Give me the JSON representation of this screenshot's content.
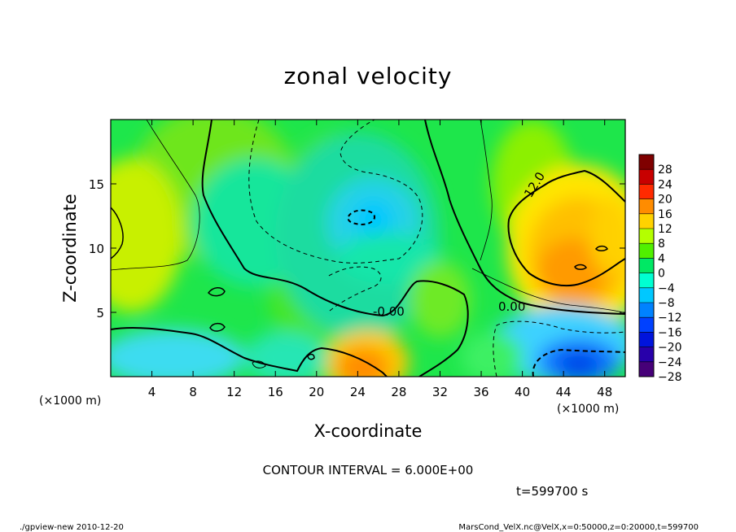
{
  "chart_data": {
    "type": "heatmap",
    "title": "zonal velocity",
    "xlabel": "X-coordinate",
    "ylabel": "Z-coordinate",
    "x_unit": "(×1000 m)",
    "y_unit": "(×1000 m)",
    "xlim": [
      0,
      50
    ],
    "ylim": [
      0,
      20
    ],
    "x_ticks": [
      "4",
      "8",
      "12",
      "16",
      "20",
      "24",
      "28",
      "32",
      "36",
      "40",
      "44",
      "48"
    ],
    "y_ticks": [
      "5",
      "10",
      "15"
    ],
    "colorbar_levels": [
      "28",
      "24",
      "20",
      "16",
      "12",
      "8",
      "4",
      "0",
      "−4",
      "−8",
      "−12",
      "−16",
      "−20",
      "−24",
      "−28"
    ],
    "colorbar_range": [
      -30,
      30
    ],
    "contour_labels": [
      "12.0",
      "0.00",
      "-0.00"
    ],
    "contour_interval_text": "CONTOUR INTERVAL = 6.000E+00",
    "time_text": "t=599700 s",
    "features": [
      {
        "name": "upper-right maximum",
        "x": 45,
        "z": 8.5,
        "value": 16
      },
      {
        "name": "bottom-center maximum",
        "x": 25,
        "z": 1,
        "value": 18
      },
      {
        "name": "center minimum",
        "x": 25.5,
        "z": 12,
        "value": -10
      },
      {
        "name": "bottom-right minimum",
        "x": 45,
        "z": 1,
        "value": -22
      },
      {
        "name": "bottom-left minimum",
        "x": 4,
        "z": 1.5,
        "value": -9
      },
      {
        "name": "left-edge maximum",
        "x": 0.5,
        "z": 11.5,
        "value": 9
      }
    ]
  },
  "footer": {
    "left": "./gpview-new   2010-12-20",
    "right": "MarsCond_VelX.nc@VelX,x=0:50000,z=0:20000,t=599700"
  },
  "colors": {
    "colorbar": [
      "#7f0000",
      "#c80000",
      "#ff2a00",
      "#ff8c00",
      "#ffd200",
      "#b4ff00",
      "#50f000",
      "#00e864",
      "#00ffd2",
      "#00c8ff",
      "#0082ff",
      "#0041ff",
      "#0014dc",
      "#2800aa",
      "#460078"
    ]
  }
}
